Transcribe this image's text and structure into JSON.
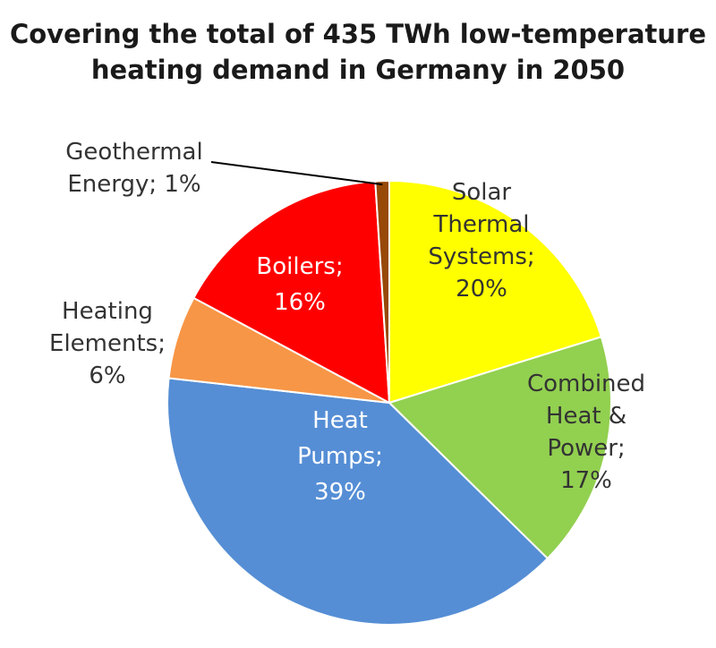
{
  "chart_data": {
    "type": "pie",
    "title_lines": [
      "Covering the total of 435 TWh low-temperature",
      "heating demand in Germany in 2050"
    ],
    "slices": [
      {
        "name": "Solar Thermal Systems",
        "value": 20,
        "color": "#ffff00",
        "label_lines": [
          "Solar",
          "Thermal",
          "Systems;",
          "20%"
        ],
        "label_color": "#333333"
      },
      {
        "name": "Combined Heat & Power",
        "value": 17,
        "color": "#92d050",
        "label_lines": [
          "Combined",
          "Heat &",
          "Power;",
          "17%"
        ],
        "label_color": "#333333"
      },
      {
        "name": "Heat Pumps",
        "value": 39,
        "color": "#558ed5",
        "label_lines": [
          "Heat",
          "Pumps;",
          "39%"
        ],
        "label_color": "#ffffff"
      },
      {
        "name": "Heating Elements",
        "value": 6,
        "color": "#f79646",
        "label_lines": [
          "Heating",
          "Elements;",
          "6%"
        ],
        "label_color": "#333333"
      },
      {
        "name": "Boilers",
        "value": 16,
        "color": "#ff0000",
        "label_lines": [
          "Boilers;",
          "16%"
        ],
        "label_color": "#ffffff"
      },
      {
        "name": "Geothermal Energy",
        "value": 1,
        "color": "#984807",
        "label_lines": [
          "Geothermal",
          "Energy; 1%"
        ],
        "label_color": "#333333"
      }
    ],
    "start_angle_deg": 0,
    "direction": "clockwise",
    "legend": "none",
    "labels": "category; percentage"
  }
}
